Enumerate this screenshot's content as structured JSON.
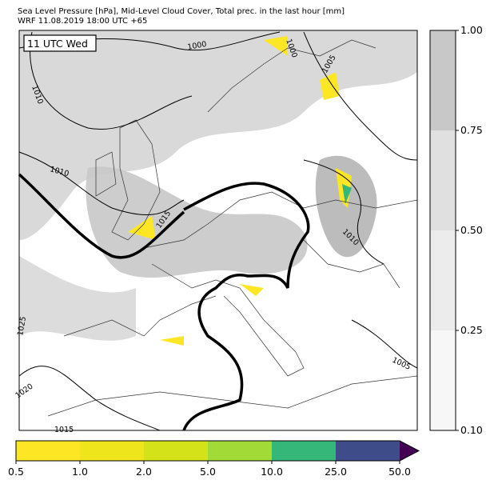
{
  "header": {
    "title_line1": "Sea Level Pressure [hPa], Mid-Level Cloud Cover, Total prec. in the last hour [mm]",
    "title_line2": "WRF 11.08.2019 18:00 UTC +65"
  },
  "map": {
    "time_label": "11 UTC Wed",
    "isobar_labels": [
      "1000",
      "1000",
      "1005",
      "1010",
      "1010",
      "1015",
      "1010",
      "1005",
      "1025",
      "1020",
      "1015"
    ]
  },
  "cloud_colorbar": {
    "colors": [
      "#f7f7f7",
      "#ececec",
      "#e0e0e0",
      "#c8c8c8"
    ],
    "ticks": [
      {
        "value": 0.1,
        "label": "0.10"
      },
      {
        "value": 0.25,
        "label": "0.25"
      },
      {
        "value": 0.5,
        "label": "0.50"
      },
      {
        "value": 0.75,
        "label": "0.75"
      },
      {
        "value": 1.0,
        "label": "1.00"
      }
    ]
  },
  "precip_colorbar": {
    "colors": [
      "#fde725",
      "#eee51c",
      "#d4e21a",
      "#a2da37",
      "#35b779",
      "#3e4c8a",
      "#440154"
    ],
    "ticks": [
      {
        "value": 0.5,
        "label": "0.5"
      },
      {
        "value": 1.0,
        "label": "1.0"
      },
      {
        "value": 2.0,
        "label": "2.0"
      },
      {
        "value": 5.0,
        "label": "5.0"
      },
      {
        "value": 10.0,
        "label": "10.0"
      },
      {
        "value": 25.0,
        "label": "25.0"
      },
      {
        "value": 50.0,
        "label": "50.0"
      }
    ]
  }
}
